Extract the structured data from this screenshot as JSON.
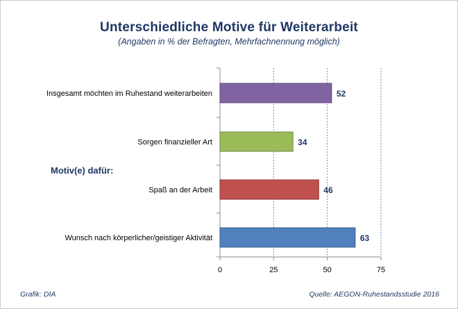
{
  "header": {
    "title": "Unterschiedliche Motive für Weiterarbeit",
    "subtitle": "(Angaben in % der Befragten, Mehrfachnennung möglich)"
  },
  "footer": {
    "left": "Grafik: DIA",
    "right": "Quelle: AEGON-Ruhestandsstudie 2016"
  },
  "chart_data": {
    "type": "bar",
    "orientation": "horizontal",
    "title": "Unterschiedliche Motive für Weiterarbeit",
    "subtitle": "(Angaben in % der Befragten, Mehrfachnennung möglich)",
    "categories": [
      "Insgesamt möchten im Ruhestand weiterarbeiten",
      "Sorgen finanzieller Art",
      "Spaß an der Arbeit",
      "Wunsch nach körperlicher/geistiger Aktivität"
    ],
    "values": [
      52,
      34,
      46,
      63
    ],
    "bar_colors": [
      "#8064a2",
      "#9bbb59",
      "#c0504d",
      "#4f81bd"
    ],
    "bar_borders": [
      "#5c4776",
      "#71893f",
      "#8c3836",
      "#385d8a"
    ],
    "xlim": [
      0,
      75
    ],
    "xticks": [
      "0",
      "25",
      "50",
      "75"
    ],
    "grid": "vertical dashed",
    "legend": "none",
    "group_label": "Motiv(e) dafür:"
  }
}
